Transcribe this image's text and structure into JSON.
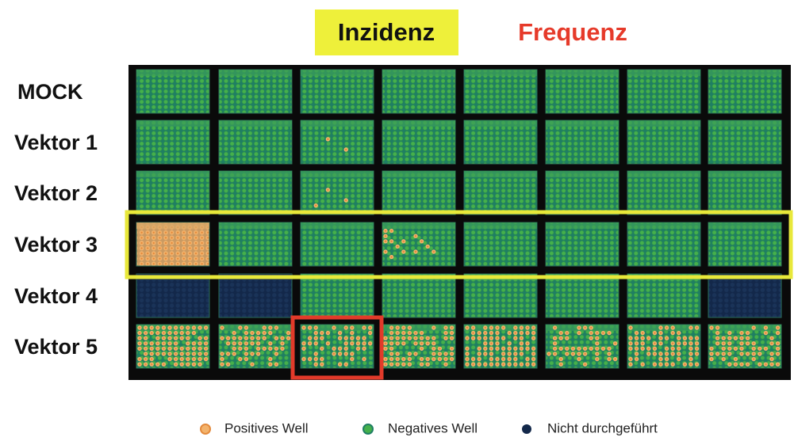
{
  "header": {
    "incidence": "Inzidenz",
    "frequency": "Frequenz"
  },
  "rows": [
    "MOCK",
    "Vektor 1",
    "Vektor 2",
    "Vektor 3",
    "Vektor 4",
    "Vektor 5"
  ],
  "legend": [
    "Positives Well",
    "Negatives Well",
    "Nicht durchgeführt"
  ]
}
